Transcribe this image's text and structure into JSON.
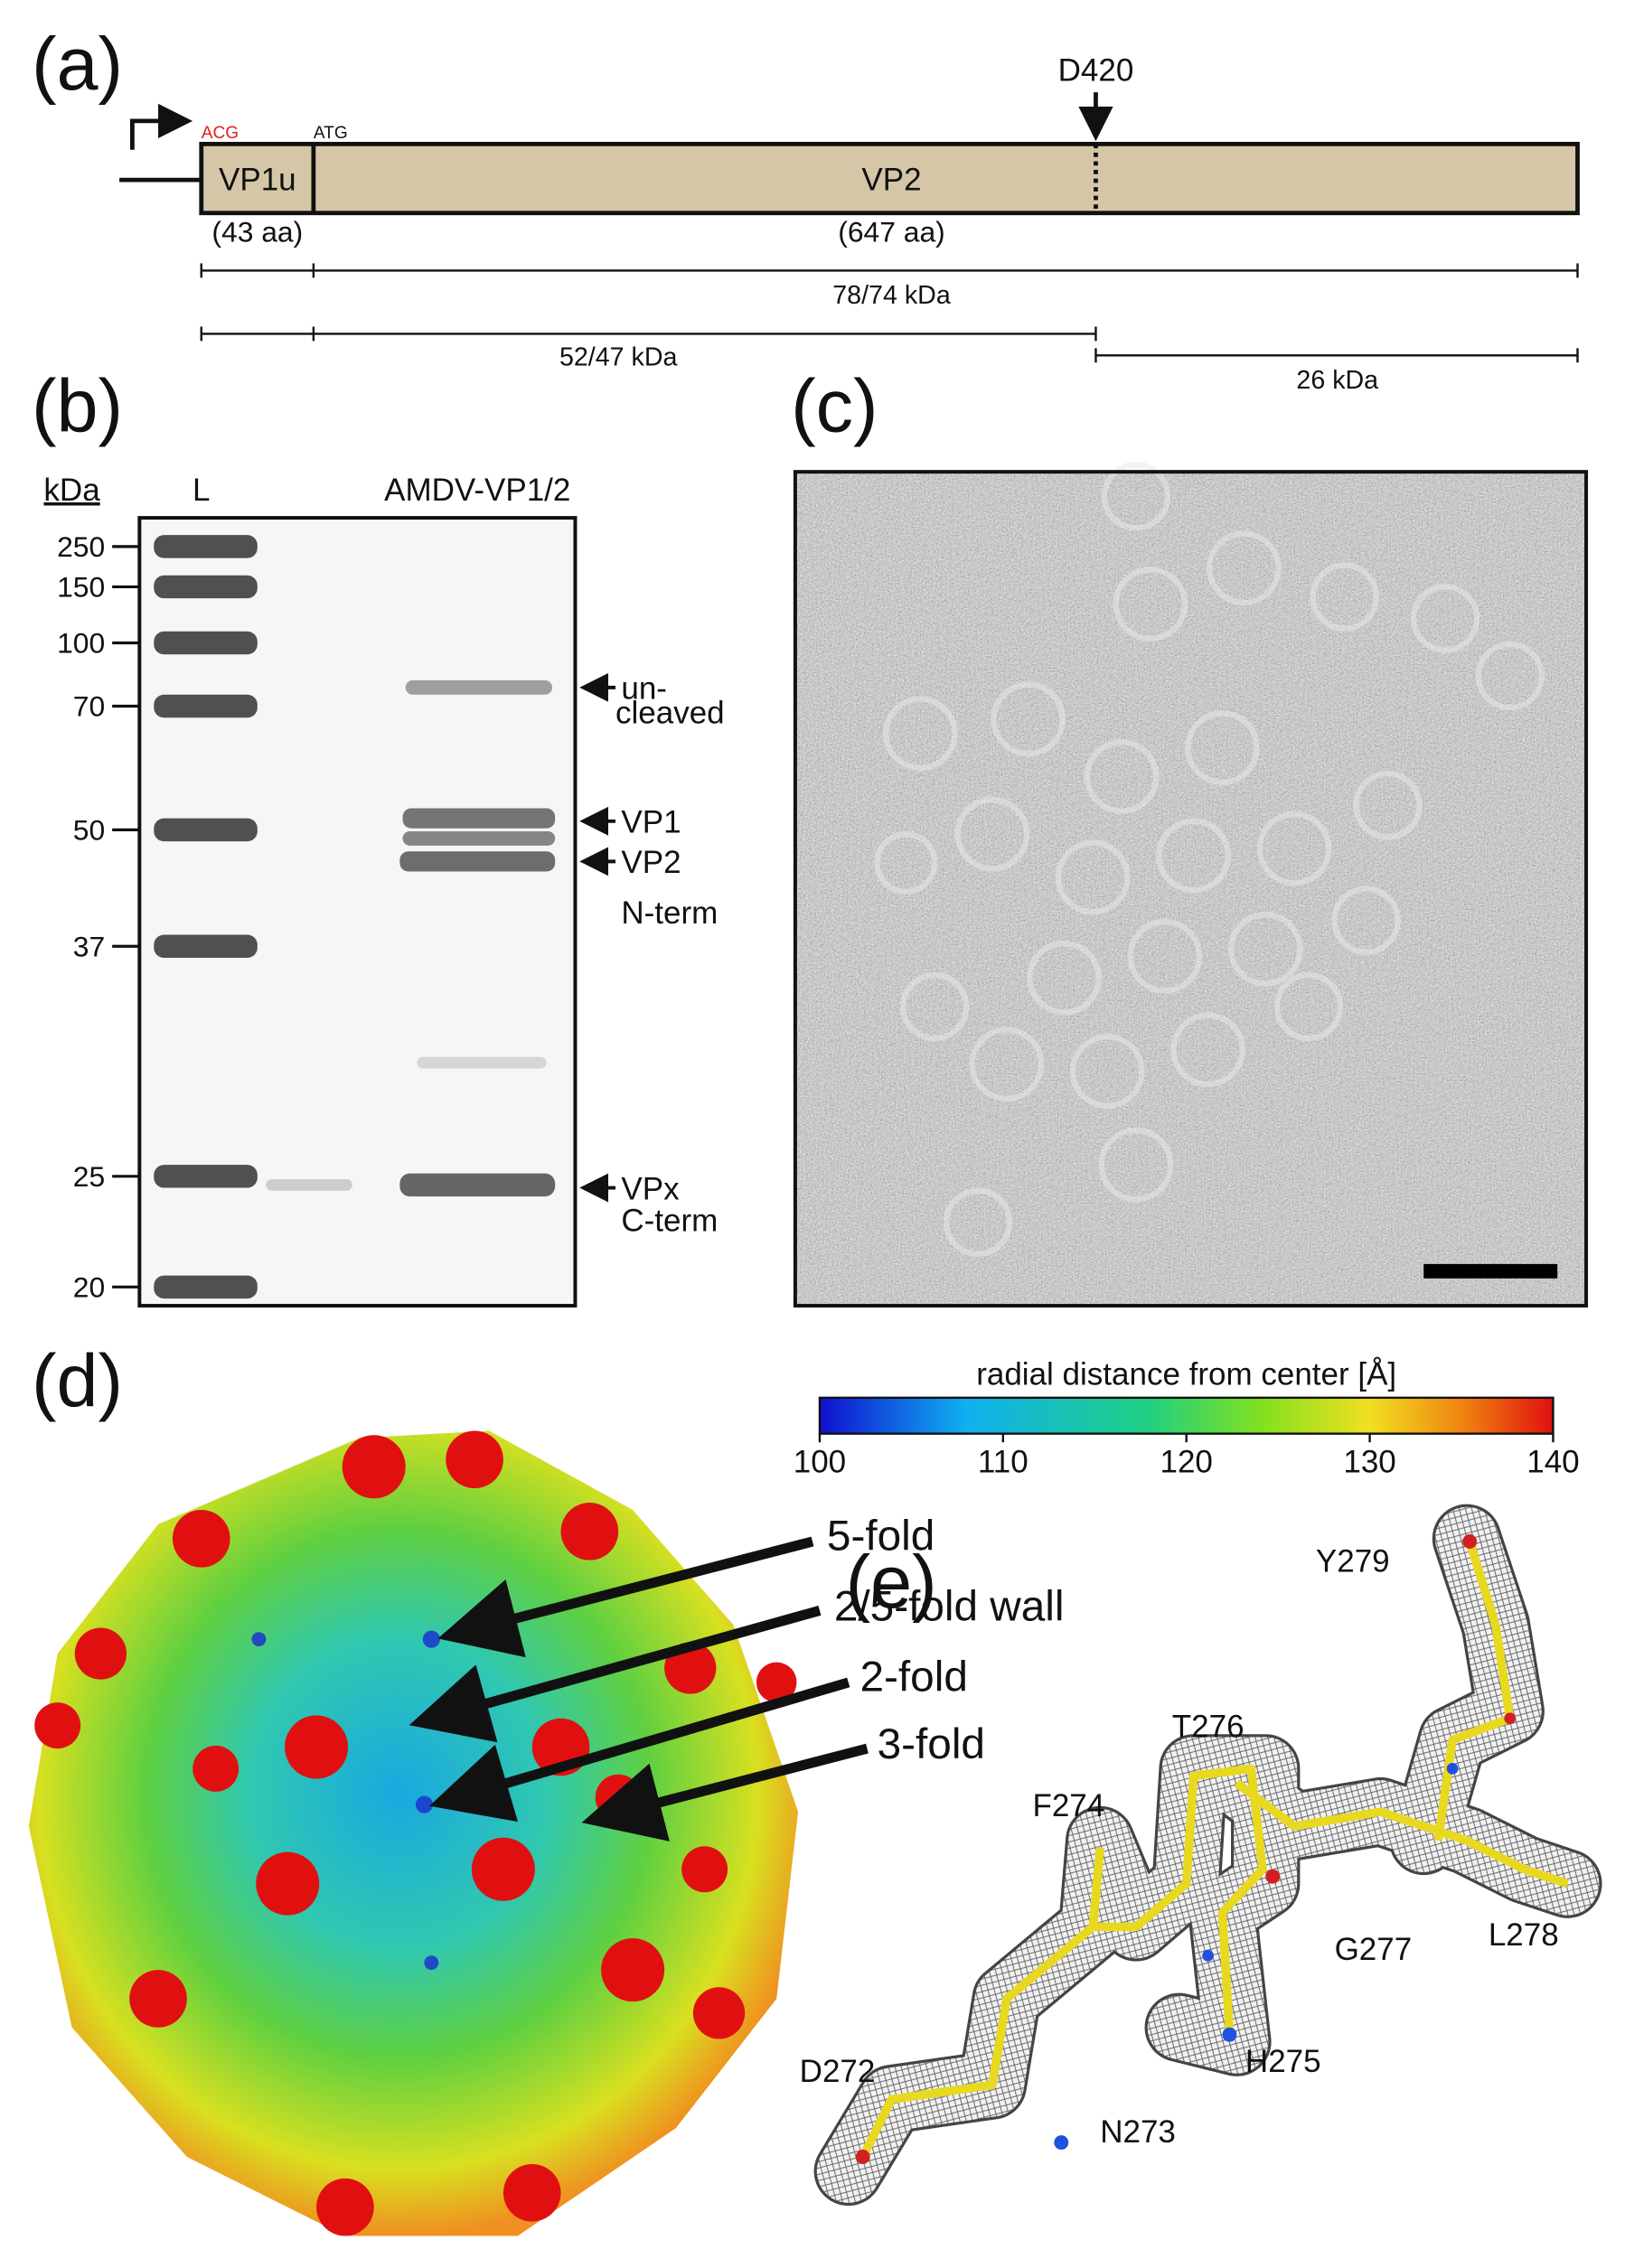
{
  "panel_a": {
    "label": "(a)",
    "start_codon": "ACG",
    "second_codon": "ATG",
    "site": "D420",
    "segments": [
      {
        "name": "VP1u",
        "length": "(43 aa)"
      },
      {
        "name": "VP2",
        "length": "(647 aa)"
      }
    ],
    "fragments": [
      "78/74 kDa",
      "52/47 kDa",
      "26 kDa"
    ]
  },
  "panel_b": {
    "label": "(b)",
    "unit": "kDa",
    "lanes": [
      "L",
      "AMDV-VP1/2"
    ],
    "markers": [
      "250",
      "150",
      "100",
      "70",
      "50",
      "37",
      "25",
      "20"
    ],
    "bands": [
      {
        "lines": [
          "un-",
          "cleaved"
        ]
      },
      {
        "lines": [
          "VP1"
        ]
      },
      {
        "lines": [
          "VP2",
          "N-term"
        ]
      },
      {
        "lines": [
          "VPx",
          "C-term"
        ]
      }
    ]
  },
  "panel_c": {
    "label": "(c)"
  },
  "panel_d": {
    "label": "(d)",
    "colorbar_title": "radial distance from center [Å]",
    "colorbar_ticks": [
      100,
      110,
      120,
      130,
      140
    ],
    "arrows": [
      "5-fold",
      "2/5-fold wall",
      "2-fold",
      "3-fold"
    ]
  },
  "panel_e": {
    "label": "(e)",
    "residues": [
      "Y279",
      "T276",
      "F274",
      "G277",
      "L278",
      "H275",
      "D272",
      "N273"
    ]
  }
}
